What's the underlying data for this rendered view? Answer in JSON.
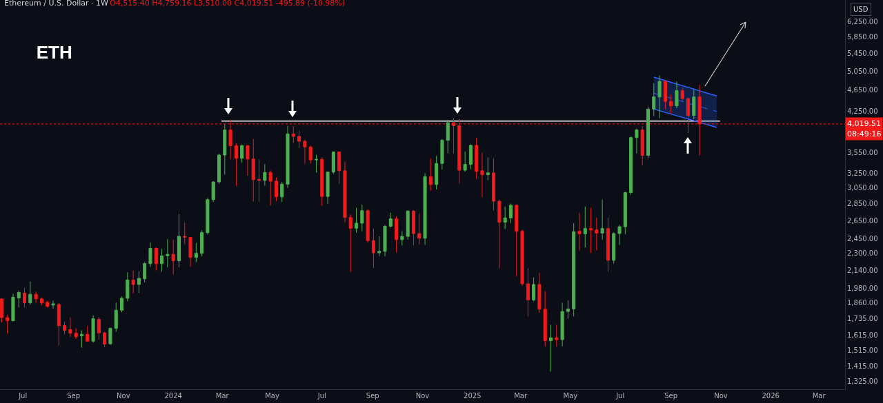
{
  "chart_data": {
    "type": "candlestick",
    "title": "ETH",
    "subtitle": "Ethereum / U.S. Dollar · 1W",
    "annotations": [
      "O4,515.40 H4,759.16 L3,510.00 C4,019.51 -495.89 (-10.98%)",
      "USD",
      "08:49:16"
    ],
    "log": true,
    "xlim": [
      "2023-06-03",
      "2026-04-02"
    ],
    "ylim": [
      1280,
      6860
    ],
    "xticks": [
      {
        "value": "2023-07-01",
        "label": "Jul"
      },
      {
        "value": "2023-09-01",
        "label": "Sep"
      },
      {
        "value": "2023-11-01",
        "label": "Nov"
      },
      {
        "value": "2024-01-01",
        "label": "2024"
      },
      {
        "value": "2024-03-01",
        "label": "Mar"
      },
      {
        "value": "2024-05-01",
        "label": "May"
      },
      {
        "value": "2024-07-01",
        "label": "Jul"
      },
      {
        "value": "2024-09-01",
        "label": "Sep"
      },
      {
        "value": "2024-11-01",
        "label": "Nov"
      },
      {
        "value": "2025-01-01",
        "label": "2025"
      },
      {
        "value": "2025-03-01",
        "label": "Mar"
      },
      {
        "value": "2025-05-01",
        "label": "May"
      },
      {
        "value": "2025-07-01",
        "label": "Jul"
      },
      {
        "value": "2025-09-01",
        "label": "Sep"
      },
      {
        "value": "2025-11-01",
        "label": "Nov"
      },
      {
        "value": "2026-01-01",
        "label": "2026"
      },
      {
        "value": "2026-03-01",
        "label": "Mar"
      }
    ],
    "yticks": [
      {
        "value": 1325,
        "label": "1,325.00"
      },
      {
        "value": 1415,
        "label": "1,415.00"
      },
      {
        "value": 1515,
        "label": "1,515.00"
      },
      {
        "value": 1615,
        "label": "1,615.00"
      },
      {
        "value": 1735,
        "label": "1,735.00"
      },
      {
        "value": 1860,
        "label": "1,860.00"
      },
      {
        "value": 1980,
        "label": "1,980.00"
      },
      {
        "value": 2140,
        "label": "2,140.00"
      },
      {
        "value": 2300,
        "label": "2,300.00"
      },
      {
        "value": 2450,
        "label": "2,450.00"
      },
      {
        "value": 2650,
        "label": "2,650.00"
      },
      {
        "value": 2850,
        "label": "2,850.00"
      },
      {
        "value": 3050,
        "label": "3,050.00"
      },
      {
        "value": 3250,
        "label": "3,250.00"
      },
      {
        "value": 3550,
        "label": "3,550.00"
      },
      {
        "value": 4250,
        "label": "4,250.00"
      },
      {
        "value": 4650,
        "label": "4,650.00"
      },
      {
        "value": 5050,
        "label": "5,050.00"
      },
      {
        "value": 5450,
        "label": "5,450.00"
      },
      {
        "value": 5850,
        "label": "5,850.00"
      },
      {
        "value": 6250,
        "label": "6,250.00"
      }
    ],
    "x": [
      "2023-06-05",
      "2023-06-12",
      "2023-06-19",
      "2023-06-26",
      "2023-07-03",
      "2023-07-10",
      "2023-07-17",
      "2023-07-24",
      "2023-07-31",
      "2023-08-07",
      "2023-08-14",
      "2023-08-21",
      "2023-08-28",
      "2023-09-04",
      "2023-09-11",
      "2023-09-18",
      "2023-09-25",
      "2023-10-02",
      "2023-10-09",
      "2023-10-16",
      "2023-10-23",
      "2023-10-30",
      "2023-11-06",
      "2023-11-13",
      "2023-11-20",
      "2023-11-27",
      "2023-12-04",
      "2023-12-11",
      "2023-12-18",
      "2023-12-25",
      "2024-01-01",
      "2024-01-08",
      "2024-01-15",
      "2024-01-22",
      "2024-01-29",
      "2024-02-05",
      "2024-02-12",
      "2024-02-19",
      "2024-02-26",
      "2024-03-04",
      "2024-03-11",
      "2024-03-18",
      "2024-03-25",
      "2024-04-01",
      "2024-04-08",
      "2024-04-15",
      "2024-04-22",
      "2024-04-29",
      "2024-05-06",
      "2024-05-13",
      "2024-05-20",
      "2024-05-27",
      "2024-06-03",
      "2024-06-10",
      "2024-06-17",
      "2024-06-24",
      "2024-07-01",
      "2024-07-08",
      "2024-07-15",
      "2024-07-22",
      "2024-07-29",
      "2024-08-05",
      "2024-08-12",
      "2024-08-19",
      "2024-08-26",
      "2024-09-02",
      "2024-09-09",
      "2024-09-16",
      "2024-09-23",
      "2024-09-30",
      "2024-10-07",
      "2024-10-14",
      "2024-10-21",
      "2024-10-28",
      "2024-11-04",
      "2024-11-11",
      "2024-11-18",
      "2024-11-25",
      "2024-12-02",
      "2024-12-09",
      "2024-12-16",
      "2024-12-23",
      "2024-12-30",
      "2025-01-06",
      "2025-01-13",
      "2025-01-20",
      "2025-01-27",
      "2025-02-03",
      "2025-02-10",
      "2025-02-17",
      "2025-02-24",
      "2025-03-03",
      "2025-03-10",
      "2025-03-17",
      "2025-03-24",
      "2025-03-31",
      "2025-04-07",
      "2025-04-14",
      "2025-04-21",
      "2025-04-28",
      "2025-05-05",
      "2025-05-12",
      "2025-05-19",
      "2025-05-26",
      "2025-06-02",
      "2025-06-09",
      "2025-06-16",
      "2025-06-23",
      "2025-06-30",
      "2025-07-07",
      "2025-07-14",
      "2025-07-21",
      "2025-07-28",
      "2025-08-04",
      "2025-08-11",
      "2025-08-18",
      "2025-08-25",
      "2025-09-01",
      "2025-09-08",
      "2025-09-15",
      "2025-09-22",
      "2025-09-29",
      "2025-10-06"
    ],
    "ohlc": [
      [
        1890,
        1890,
        1707,
        1743
      ],
      [
        1743,
        1765,
        1626,
        1720
      ],
      [
        1720,
        1932,
        1715,
        1904
      ],
      [
        1897,
        1962,
        1822,
        1943
      ],
      [
        1938,
        1983,
        1822,
        1858
      ],
      [
        1858,
        2037,
        1843,
        1928
      ],
      [
        1928,
        1950,
        1858,
        1890
      ],
      [
        1890,
        1900,
        1840,
        1858
      ],
      [
        1862,
        1875,
        1820,
        1830
      ],
      [
        1840,
        1875,
        1812,
        1850
      ],
      [
        1845,
        1855,
        1545,
        1683
      ],
      [
        1685,
        1712,
        1620,
        1650
      ],
      [
        1655,
        1745,
        1605,
        1630
      ],
      [
        1630,
        1665,
        1590,
        1605
      ],
      [
        1612,
        1650,
        1531,
        1622
      ],
      [
        1622,
        1680,
        1570,
        1575
      ],
      [
        1575,
        1760,
        1565,
        1735
      ],
      [
        1730,
        1747,
        1585,
        1632
      ],
      [
        1632,
        1640,
        1535,
        1555
      ],
      [
        1557,
        1670,
        1550,
        1664
      ],
      [
        1664,
        1860,
        1640,
        1800
      ],
      [
        1800,
        1910,
        1785,
        1895
      ],
      [
        1895,
        2120,
        1870,
        2050
      ],
      [
        2050,
        2135,
        1935,
        2011
      ],
      [
        2011,
        2130,
        1940,
        2065
      ],
      [
        2061,
        2215,
        2030,
        2201
      ],
      [
        2200,
        2410,
        2170,
        2350
      ],
      [
        2350,
        2360,
        2137,
        2200
      ],
      [
        2200,
        2345,
        2125,
        2275
      ],
      [
        2275,
        2445,
        2165,
        2290
      ],
      [
        2290,
        2440,
        2103,
        2228
      ],
      [
        2228,
        2725,
        2165,
        2476
      ],
      [
        2475,
        2625,
        2390,
        2465
      ],
      [
        2465,
        2470,
        2170,
        2260
      ],
      [
        2260,
        2405,
        2215,
        2300
      ],
      [
        2300,
        2540,
        2270,
        2515
      ],
      [
        2515,
        2920,
        2495,
        2900
      ],
      [
        2900,
        3140,
        2870,
        3130
      ],
      [
        3130,
        3530,
        3100,
        3515
      ],
      [
        3515,
        4015,
        3230,
        3915
      ],
      [
        3915,
        4090,
        3450,
        3660
      ],
      [
        3660,
        3700,
        3075,
        3465
      ],
      [
        3465,
        3680,
        3400,
        3660
      ],
      [
        3660,
        3670,
        3215,
        3455
      ],
      [
        3455,
        3770,
        2875,
        3160
      ],
      [
        3165,
        3450,
        2870,
        3150
      ],
      [
        3150,
        3380,
        3080,
        3260
      ],
      [
        3260,
        3290,
        2827,
        3140
      ],
      [
        3140,
        3190,
        2880,
        2935
      ],
      [
        2935,
        3130,
        2870,
        3100
      ],
      [
        3100,
        3985,
        3050,
        3850
      ],
      [
        3850,
        3980,
        3705,
        3810
      ],
      [
        3810,
        3910,
        3620,
        3730
      ],
      [
        3730,
        3760,
        3385,
        3640
      ],
      [
        3640,
        3660,
        3385,
        3442
      ],
      [
        3442,
        3520,
        3260,
        3450
      ],
      [
        3450,
        3480,
        2825,
        2940
      ],
      [
        2940,
        3270,
        2845,
        3265
      ],
      [
        3265,
        3565,
        3240,
        3563
      ],
      [
        3563,
        3570,
        3110,
        3285
      ],
      [
        3285,
        3415,
        2630,
        2685
      ],
      [
        2685,
        2720,
        2123,
        2563
      ],
      [
        2563,
        2800,
        2515,
        2620
      ],
      [
        2620,
        2840,
        2530,
        2765
      ],
      [
        2765,
        2780,
        2410,
        2430
      ],
      [
        2430,
        2560,
        2160,
        2305
      ],
      [
        2305,
        2475,
        2270,
        2320
      ],
      [
        2320,
        2600,
        2270,
        2585
      ],
      [
        2585,
        2740,
        2570,
        2670
      ],
      [
        2670,
        2700,
        2310,
        2440
      ],
      [
        2440,
        2530,
        2380,
        2475
      ],
      [
        2475,
        2770,
        2440,
        2760
      ],
      [
        2760,
        2770,
        2380,
        2505
      ],
      [
        2505,
        2730,
        2390,
        2455
      ],
      [
        2455,
        3250,
        2385,
        3200
      ],
      [
        3200,
        3465,
        3015,
        3095
      ],
      [
        3095,
        3500,
        3030,
        3390
      ],
      [
        3390,
        3770,
        3300,
        3745
      ],
      [
        3745,
        4090,
        3540,
        4041
      ],
      [
        4041,
        4120,
        3540,
        3990
      ],
      [
        3990,
        4110,
        3110,
        3293
      ],
      [
        3293,
        3570,
        3270,
        3375
      ],
      [
        3375,
        3680,
        3305,
        3665
      ],
      [
        3665,
        3785,
        3170,
        3275
      ],
      [
        3285,
        3550,
        2930,
        3230
      ],
      [
        3230,
        3480,
        3155,
        3255
      ],
      [
        3255,
        3465,
        2765,
        2880
      ],
      [
        2880,
        2900,
        2155,
        2630
      ],
      [
        2630,
        2815,
        2555,
        2680
      ],
      [
        2680,
        2850,
        2620,
        2830
      ],
      [
        2830,
        2840,
        2085,
        2530
      ],
      [
        2530,
        2550,
        2000,
        2017
      ],
      [
        2017,
        2155,
        1752,
        1882
      ],
      [
        1882,
        2073,
        1870,
        2011
      ],
      [
        2011,
        2114,
        1780,
        1808
      ],
      [
        1808,
        1953,
        1540,
        1578
      ],
      [
        1578,
        1690,
        1381,
        1598
      ],
      [
        1598,
        1690,
        1540,
        1585
      ],
      [
        1585,
        1858,
        1540,
        1790
      ],
      [
        1790,
        1877,
        1735,
        1810
      ],
      [
        1810,
        2620,
        1752,
        2525
      ],
      [
        2530,
        2740,
        2330,
        2503
      ],
      [
        2503,
        2815,
        2360,
        2560
      ],
      [
        2560,
        2800,
        2305,
        2545
      ],
      [
        2545,
        2685,
        2330,
        2510
      ],
      [
        2510,
        2900,
        2440,
        2560
      ],
      [
        2560,
        2685,
        2123,
        2232
      ],
      [
        2232,
        2520,
        2200,
        2505
      ],
      [
        2505,
        2600,
        2385,
        2580
      ],
      [
        2580,
        3000,
        2500,
        2990
      ],
      [
        2990,
        3805,
        2960,
        3790
      ],
      [
        3790,
        3940,
        3540,
        3915
      ],
      [
        3915,
        3980,
        3360,
        3510
      ],
      [
        3510,
        4330,
        3470,
        4285
      ],
      [
        4285,
        4790,
        4160,
        4515
      ],
      [
        4515,
        4955,
        4120,
        4830
      ],
      [
        4830,
        4850,
        4285,
        4430
      ],
      [
        4430,
        4560,
        4200,
        4345
      ],
      [
        4345,
        4830,
        4300,
        4640
      ],
      [
        4640,
        4700,
        4440,
        4483
      ],
      [
        4483,
        4510,
        3865,
        4170
      ],
      [
        4170,
        4660,
        4100,
        4515
      ],
      [
        4515.4,
        4759.16,
        3510.0,
        4019.51
      ]
    ],
    "colors": [
      "#f21b1b",
      "#f21b1b",
      "#4caf50",
      "#4caf50",
      "#f21b1b",
      "#4caf50",
      "#f21b1b",
      "#f21b1b",
      "#f21b1b",
      "#4caf50",
      "#f21b1b",
      "#f21b1b",
      "#f21b1b",
      "#f21b1b",
      "#4caf50",
      "#f21b1b",
      "#4caf50",
      "#f21b1b",
      "#f21b1b",
      "#4caf50",
      "#4caf50",
      "#4caf50",
      "#4caf50",
      "#f21b1b",
      "#4caf50",
      "#4caf50",
      "#4caf50",
      "#f21b1b",
      "#4caf50",
      "#4caf50",
      "#f21b1b",
      "#4caf50",
      "#f21b1b",
      "#f21b1b",
      "#4caf50",
      "#4caf50",
      "#4caf50",
      "#4caf50",
      "#4caf50",
      "#4caf50",
      "#f21b1b",
      "#f21b1b",
      "#4caf50",
      "#f21b1b",
      "#f21b1b",
      "#f21b1b",
      "#4caf50",
      "#f21b1b",
      "#f21b1b",
      "#4caf50",
      "#4caf50",
      "#f21b1b",
      "#f21b1b",
      "#f21b1b",
      "#f21b1b",
      "#4caf50",
      "#f21b1b",
      "#4caf50",
      "#4caf50",
      "#f21b1b",
      "#f21b1b",
      "#f21b1b",
      "#4caf50",
      "#4caf50",
      "#f21b1b",
      "#f21b1b",
      "#4caf50",
      "#4caf50",
      "#4caf50",
      "#f21b1b",
      "#4caf50",
      "#4caf50",
      "#f21b1b",
      "#f21b1b",
      "#4caf50",
      "#f21b1b",
      "#4caf50",
      "#4caf50",
      "#4caf50",
      "#f21b1b",
      "#f21b1b",
      "#4caf50",
      "#4caf50",
      "#f21b1b",
      "#f21b1b",
      "#4caf50",
      "#f21b1b",
      "#f21b1b",
      "#4caf50",
      "#4caf50",
      "#f21b1b",
      "#f21b1b",
      "#f21b1b",
      "#4caf50",
      "#f21b1b",
      "#f21b1b",
      "#4caf50",
      "#f21b1b",
      "#4caf50",
      "#4caf50",
      "#4caf50",
      "#f21b1b",
      "#4caf50",
      "#f21b1b",
      "#f21b1b",
      "#4caf50",
      "#f21b1b",
      "#4caf50",
      "#4caf50",
      "#4caf50",
      "#4caf50",
      "#4caf50",
      "#f21b1b",
      "#4caf50",
      "#4caf50",
      "#4caf50",
      "#f21b1b",
      "#f21b1b",
      "#4caf50",
      "#f21b1b",
      "#f21b1b",
      "#4caf50",
      "#f21b1b"
    ],
    "series": [
      {
        "type": "line",
        "color": "#ffffff",
        "line_style": "solid",
        "x": [
          "2024-02-29",
          "2025-10-31"
        ],
        "values": [
          4070,
          4070
        ]
      },
      {
        "type": "line",
        "color": "#2962ff",
        "line_style": "solid",
        "x": [
          "2025-08-11",
          "2025-10-27"
        ],
        "values": [
          4918,
          4535
        ]
      },
      {
        "type": "line",
        "color": "#2962ff",
        "line_style": "solid",
        "x": [
          "2025-08-11",
          "2025-10-27"
        ],
        "values": [
          4285,
          3960
        ]
      },
      {
        "type": "line",
        "color": "#2962ff",
        "line_style": "dashed",
        "x": [
          "2025-08-11",
          "2025-10-27"
        ],
        "values": [
          4590,
          4240
        ],
        "lower": [
          4285,
          3960
        ],
        "upper": [
          4918,
          4535
        ]
      }
    ],
    "ref_lines": [
      {
        "axis": "y",
        "value": 4019.51,
        "label": "4,019.51",
        "color": "#f21b1b",
        "line_style": "dotted"
      }
    ]
  }
}
